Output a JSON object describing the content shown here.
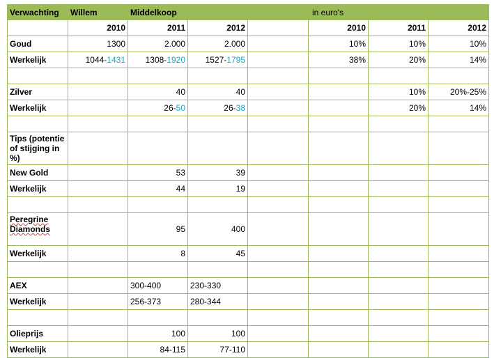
{
  "header": {
    "title": "Verwachting",
    "author_first": "Willem",
    "author_last": "Middelkoop",
    "currency_note": "in euro's"
  },
  "years": [
    "2010",
    "2011",
    "2012"
  ],
  "pct_years": [
    "2010",
    "2011",
    "2012"
  ],
  "goud": {
    "label": "Goud",
    "v2010": "1300",
    "v2011": "2.000",
    "v2012": "2.000",
    "p2010": "10%",
    "p2011": "10%",
    "p2012": "10%"
  },
  "goud_werkelijk": {
    "label": "Werkelijk",
    "v2010_a": "1044-",
    "v2010_b": "1431",
    "v2011_a": "1308-",
    "v2011_b": "1920",
    "v2012_a": "1527-",
    "v2012_b": "1795",
    "p2010": "38%",
    "p2011": "20%",
    "p2012": "14%"
  },
  "zilver": {
    "label": "Zilver",
    "v2011": "40",
    "v2012": "40",
    "p2011": "10%",
    "p2012": "20%-25%"
  },
  "zilver_werkelijk": {
    "label": "Werkelijk",
    "v2011_a": "26-",
    "v2011_b": "50",
    "v2012_a": "26-",
    "v2012_b": "38",
    "p2011": "20%",
    "p2012": "14%"
  },
  "tips": {
    "label": "Tips (potentie of stijging in %)"
  },
  "new_gold": {
    "label": "New Gold",
    "v2011": "53",
    "v2012": "39"
  },
  "new_gold_werkelijk": {
    "label": "Werkelijk",
    "v2011": "44",
    "v2012": "19"
  },
  "peregrine": {
    "label_1": "Peregrine",
    "label_2": "Diamonds",
    "v2011": "95",
    "v2012": "400"
  },
  "peregrine_werkelijk": {
    "label": "Werkelijk",
    "v2011": "8",
    "v2012": "45"
  },
  "aex": {
    "label": "AEX",
    "v2011": "300-400",
    "v2012": "230-330"
  },
  "aex_werkelijk": {
    "label": "Werkelijk",
    "v2011": "256-373",
    "v2012": "280-344"
  },
  "olie": {
    "label": "Olieprijs",
    "v2011": "100",
    "v2012": "100"
  },
  "olie_werkelijk": {
    "label": "Werkelijk",
    "v2011": "84-115",
    "v2012": "77-110"
  },
  "colors": {
    "header_green": "#9bbb59",
    "grid_green": "#9bbb59",
    "actual_blue": "#1fa3c4"
  }
}
